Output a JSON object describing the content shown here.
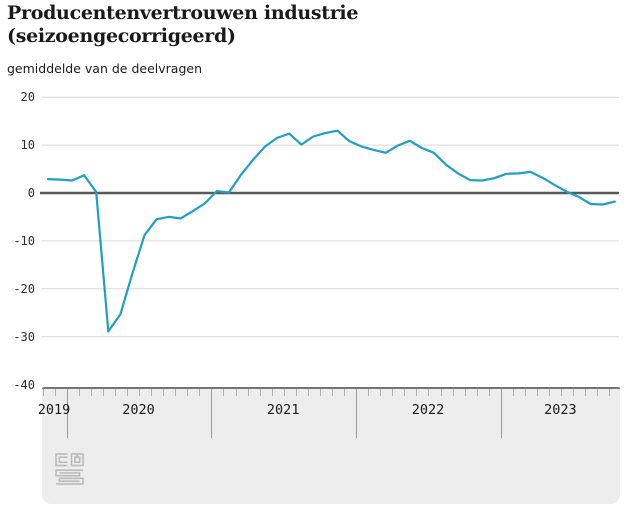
{
  "header": {
    "title_line1": "Producentenvertrouwen industrie",
    "title_line2": "(seizoengecorrigeerd)",
    "subtitle": "gemiddelde van de deelvragen"
  },
  "chart_data": {
    "type": "line",
    "title": "Producentenvertrouwen industrie (seizoengecorrigeerd)",
    "subtitle": "gemiddelde van de deelvragen",
    "ylabel": "",
    "xlabel": "",
    "ylim": [
      -40,
      20
    ],
    "yticks": [
      20,
      10,
      0,
      -10,
      -20,
      -30,
      -40
    ],
    "ytick_labels": [
      "20",
      "10",
      "0",
      "-10",
      "-20",
      "-30",
      "-40"
    ],
    "x_year_labels": [
      "2019",
      "2020",
      "2021",
      "2022",
      "2023"
    ],
    "grid": "horizontal",
    "zero_line": true,
    "legend_position": "none",
    "x_months": [
      "2019-11",
      "2019-12",
      "2020-01",
      "2020-02",
      "2020-03",
      "2020-04",
      "2020-05",
      "2020-06",
      "2020-07",
      "2020-08",
      "2020-09",
      "2020-10",
      "2020-11",
      "2020-12",
      "2021-01",
      "2021-02",
      "2021-03",
      "2021-04",
      "2021-05",
      "2021-06",
      "2021-07",
      "2021-08",
      "2021-09",
      "2021-10",
      "2021-11",
      "2021-12",
      "2022-01",
      "2022-02",
      "2022-03",
      "2022-04",
      "2022-05",
      "2022-06",
      "2022-07",
      "2022-08",
      "2022-09",
      "2022-10",
      "2022-11",
      "2022-12",
      "2023-01",
      "2023-02",
      "2023-03",
      "2023-04",
      "2023-05",
      "2023-06",
      "2023-07",
      "2023-08",
      "2023-09",
      "2023-10"
    ],
    "series": [
      {
        "name": "producentenvertrouwen industrie",
        "color": "#1ea0c5",
        "values": [
          2.9,
          2.8,
          2.6,
          3.7,
          0.2,
          -28.9,
          -25.3,
          -16.8,
          -8.8,
          -5.5,
          -5.0,
          -5.3,
          -3.8,
          -2.2,
          0.4,
          0.1,
          3.8,
          6.9,
          9.7,
          11.5,
          12.4,
          10.1,
          11.8,
          12.5,
          13.0,
          10.8,
          9.7,
          9.0,
          8.4,
          9.9,
          10.9,
          9.4,
          8.4,
          5.9,
          4.1,
          2.7,
          2.6,
          3.1,
          4.0,
          4.1,
          4.4,
          3.2,
          1.7,
          0.3,
          -0.8,
          -2.3,
          -2.4,
          -1.8
        ]
      }
    ],
    "colors": {
      "line": "#1ea0c5",
      "zero_line": "#58595b",
      "gridline": "#d9d9d9",
      "axis_band_background": "#ededed",
      "axis_band_border": "#757575",
      "text": "#1a1a1a"
    }
  },
  "footer": {
    "logo_name": "cbs-logo"
  }
}
